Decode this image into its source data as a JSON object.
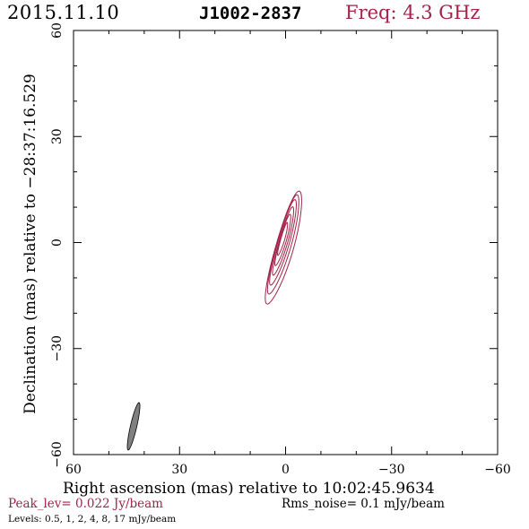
{
  "header": {
    "date": "2015.11.10",
    "source": "J1002-2837",
    "freq_label": "Freq: 4.3 GHz"
  },
  "footer": {
    "peak": "Peak_lev=  0.022 Jy/beam",
    "rms": "Rms_noise=   0.1 mJy/beam",
    "levels": "Levels: 0.5,    1,    2,    4,    8,   17 mJy/beam"
  },
  "colors": {
    "contour": "#a3224a",
    "beam": "#808080",
    "accent_text": "#a3224a"
  },
  "chart_data": {
    "type": "contour",
    "xlabel": "Right ascension (mas) relative to 10:02:45.9634",
    "ylabel": "Declination (mas) relative to −28:37:16.529",
    "xlim": [
      60,
      -60
    ],
    "ylim": [
      -60,
      60
    ],
    "xticks": [
      60,
      30,
      0,
      -30,
      -60
    ],
    "yticks": [
      -60,
      -30,
      0,
      30,
      60
    ],
    "xtick_labels": [
      "60",
      "30",
      "0",
      "−30",
      "−60"
    ],
    "ytick_labels": [
      "−60",
      "−30",
      "0",
      "30",
      "60"
    ],
    "contour_levels_mJy": [
      0.5,
      1,
      2,
      4,
      8,
      17
    ],
    "contours": [
      {
        "level": 0.5,
        "center": [
          0.4,
          -1.5
        ],
        "major": 16.5,
        "minor": 2.5,
        "pa_deg": 16
      },
      {
        "level": 1,
        "center": [
          0.5,
          -0.6
        ],
        "major": 14.5,
        "minor": 2.0,
        "pa_deg": 16
      },
      {
        "level": 2,
        "center": [
          0.6,
          0.0
        ],
        "major": 12.5,
        "minor": 1.6,
        "pa_deg": 16
      },
      {
        "level": 4,
        "center": [
          0.6,
          0.4
        ],
        "major": 10.0,
        "minor": 1.2,
        "pa_deg": 16
      },
      {
        "level": 8,
        "center": [
          0.7,
          0.7
        ],
        "major": 7.5,
        "minor": 0.9,
        "pa_deg": 16
      },
      {
        "level": 17,
        "center": [
          0.8,
          1.0
        ],
        "major": 4.8,
        "minor": 0.55,
        "pa_deg": 16
      }
    ],
    "beam": {
      "center": [
        43,
        -52
      ],
      "major": 6.9,
      "minor": 0.9,
      "pa_deg": 13
    }
  }
}
